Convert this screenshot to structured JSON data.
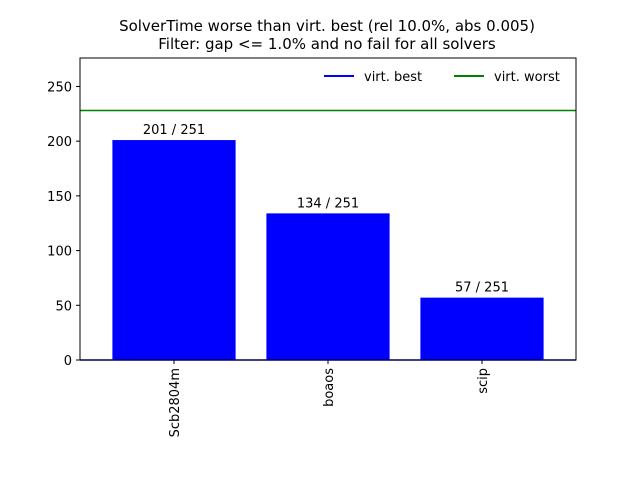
{
  "chart_data": {
    "type": "bar",
    "title_lines": [
      "SolverTime worse than virt. best (rel 10.0%, abs 0.005)",
      "Filter: gap <= 1.0% and no fail for all solvers"
    ],
    "xlabel": "",
    "ylabel": "",
    "categories": [
      "Scb2804m",
      "boaos",
      "scip"
    ],
    "values": [
      201,
      134,
      57
    ],
    "bar_labels": [
      "201 / 251",
      "134 / 251",
      "57 / 251"
    ],
    "bar_color": "#0000ff",
    "ylim": [
      0,
      276
    ],
    "yticks": [
      0,
      50,
      100,
      150,
      200,
      250
    ],
    "reference_lines": [
      {
        "name": "virt. best",
        "value": 0,
        "color": "#0000ff"
      },
      {
        "name": "virt. worst",
        "value": 228,
        "color": "#008000"
      }
    ],
    "legend_position": "top-right",
    "grid": false
  }
}
